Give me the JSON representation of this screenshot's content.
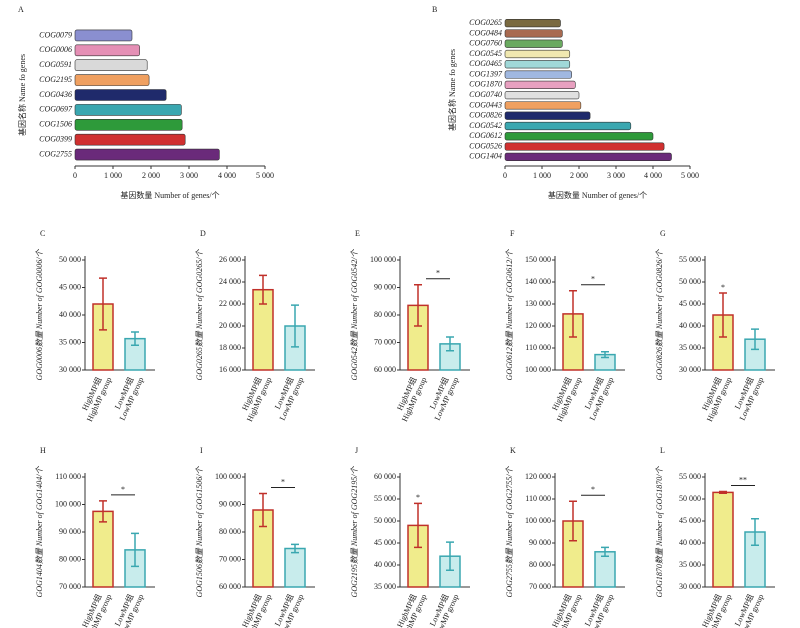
{
  "chart_data": [
    {
      "type": "bar",
      "orientation": "horizontal",
      "label": "A",
      "y_label": "基因名称  Name fo genes",
      "x_label": "基因数量  Number of genes/个",
      "categories": [
        "COG0079",
        "COG0006",
        "COG0591",
        "COG2195",
        "COG0436",
        "COG0697",
        "COG1506",
        "COG0399",
        "COG2755"
      ],
      "values": [
        1500,
        1700,
        1900,
        1950,
        2400,
        2800,
        2820,
        2900,
        3800
      ],
      "colors": [
        "#8a8fd0",
        "#e58fb5",
        "#d9d9d9",
        "#f0a060",
        "#1f2a6b",
        "#3aa7b0",
        "#2e9a3a",
        "#d03030",
        "#6a2a7a"
      ],
      "xlim": [
        0,
        5000
      ],
      "xticks": [
        0,
        {
          "value": 1000,
          "label": "1 000"
        },
        {
          "value": 2000,
          "label": "2 000"
        },
        {
          "value": 3000,
          "label": "3 000"
        },
        {
          "value": 4000,
          "label": "4 000"
        },
        {
          "value": 5000,
          "label": "5 000"
        }
      ]
    },
    {
      "type": "bar",
      "orientation": "horizontal",
      "label": "B",
      "y_label": "基因名称  Name fo genes",
      "x_label": "基因数量  Number of genes/个",
      "categories": [
        "COG0265",
        "COG0484",
        "COG0760",
        "COG0545",
        "COG0465",
        "COG1397",
        "COG1870",
        "COG0740",
        "COG0443",
        "COG0826",
        "COG0542",
        "COG0612",
        "COG0526",
        "COG1404"
      ],
      "values": [
        1500,
        1550,
        1550,
        1750,
        1750,
        1800,
        1900,
        2000,
        2050,
        2300,
        3400,
        4000,
        4300,
        4500
      ],
      "colors": [
        "#7a6a40",
        "#a86a50",
        "#6aaa60",
        "#f0e8b0",
        "#a0d8d8",
        "#a0b8e0",
        "#e8a0c0",
        "#e0e0e0",
        "#f0a060",
        "#1f2a6b",
        "#3aa7b0",
        "#2e9a3a",
        "#d03030",
        "#6a2a7a"
      ],
      "xlim": [
        0,
        5000
      ],
      "xticks": [
        0,
        {
          "value": 1000,
          "label": "1 000"
        },
        {
          "value": 2000,
          "label": "2 000"
        },
        {
          "value": 3000,
          "label": "3 000"
        },
        {
          "value": 4000,
          "label": "4 000"
        },
        {
          "value": 5000,
          "label": "5 000"
        }
      ]
    },
    {
      "type": "errorbar",
      "label": "C",
      "y_label": "GOG0006数量  Number of GOG0006/个",
      "categories": [
        [
          "HighMP组",
          "HighMP  group"
        ],
        [
          "LowMP组",
          "LowMP group"
        ]
      ],
      "values": [
        42000,
        35700
      ],
      "errors": [
        4700,
        1200
      ],
      "ylim": [
        30000,
        50000
      ],
      "yticks": [
        {
          "value": 30000,
          "label": "30 000"
        },
        {
          "value": 35000,
          "label": "35 000"
        },
        {
          "value": 40000,
          "label": "40 000"
        },
        {
          "value": 45000,
          "label": "45 000"
        },
        {
          "value": 50000,
          "label": "50 000"
        }
      ]
    },
    {
      "type": "errorbar",
      "label": "D",
      "y_label": "GOG0265数量  Number of GOG0265/个",
      "categories": [
        [
          "HighMP组",
          "HighMP  group"
        ],
        [
          "LowMP组",
          "LowMP group"
        ]
      ],
      "values": [
        23300,
        20000
      ],
      "errors": [
        1300,
        1900
      ],
      "ylim": [
        16000,
        26000
      ],
      "yticks": [
        {
          "value": 16000,
          "label": "16 000"
        },
        {
          "value": 18000,
          "label": "18 000"
        },
        {
          "value": 20000,
          "label": "20 000"
        },
        {
          "value": 22000,
          "label": "22 000"
        },
        {
          "value": 24000,
          "label": "24 000"
        },
        {
          "value": 26000,
          "label": "26 000"
        }
      ]
    },
    {
      "type": "errorbar",
      "label": "E",
      "y_label": "GOG0542数量  Number of GOG0542/个",
      "categories": [
        [
          "HighMP组",
          "HighMP  group"
        ],
        [
          "LowMP组",
          "LowMP group"
        ]
      ],
      "values": [
        83500,
        69500
      ],
      "errors": [
        7500,
        2500
      ],
      "ylim": [
        60000,
        100000
      ],
      "significance": "*",
      "bracket": true,
      "yticks": [
        {
          "value": 60000,
          "label": "60 000"
        },
        {
          "value": 70000,
          "label": "70 000"
        },
        {
          "value": 80000,
          "label": "80 000"
        },
        {
          "value": 90000,
          "label": "90 000"
        },
        {
          "value": 100000,
          "label": "100 000"
        }
      ]
    },
    {
      "type": "errorbar",
      "label": "F",
      "y_label": "GOG0612数量  Number of GOG0612/个",
      "categories": [
        [
          "HighMP组",
          "HighMP  group"
        ],
        [
          "LowMP组",
          "LowMP group"
        ]
      ],
      "values": [
        125500,
        107000
      ],
      "errors": [
        10500,
        1300
      ],
      "ylim": [
        100000,
        150000
      ],
      "significance": "*",
      "bracket": true,
      "yticks": [
        {
          "value": 100000,
          "label": "100 000"
        },
        {
          "value": 110000,
          "label": "110 000"
        },
        {
          "value": 120000,
          "label": "120 000"
        },
        {
          "value": 130000,
          "label": "130 000"
        },
        {
          "value": 140000,
          "label": "140 000"
        },
        {
          "value": 150000,
          "label": "150 000"
        }
      ]
    },
    {
      "type": "errorbar",
      "label": "G",
      "y_label": "GOG0826数量  Number of GOG0826/个",
      "categories": [
        [
          "HighMP组",
          "HighMP  group"
        ],
        [
          "LowMP组",
          "LowMP group"
        ]
      ],
      "values": [
        42500,
        37000
      ],
      "errors": [
        5000,
        2300
      ],
      "ylim": [
        30000,
        55000
      ],
      "significance": "*",
      "bracket": false,
      "yticks": [
        {
          "value": 30000,
          "label": "30 000"
        },
        {
          "value": 35000,
          "label": "35 000"
        },
        {
          "value": 40000,
          "label": "40 000"
        },
        {
          "value": 45000,
          "label": "45 000"
        },
        {
          "value": 50000,
          "label": "50 000"
        },
        {
          "value": 55000,
          "label": "55 000"
        }
      ]
    },
    {
      "type": "errorbar",
      "label": "H",
      "y_label": "GOG1404数量  Number of GOG1404/个",
      "categories": [
        [
          "HighMP组",
          "HighMP  group"
        ],
        [
          "LowMP组",
          "LowMP group"
        ]
      ],
      "values": [
        97500,
        83500
      ],
      "errors": [
        3800,
        6000
      ],
      "ylim": [
        70000,
        110000
      ],
      "significance": "*",
      "bracket": true,
      "yticks": [
        {
          "value": 70000,
          "label": "70 000"
        },
        {
          "value": 80000,
          "label": "80 000"
        },
        {
          "value": 90000,
          "label": "90 000"
        },
        {
          "value": 100000,
          "label": "100 000"
        },
        {
          "value": 110000,
          "label": "110 000"
        }
      ]
    },
    {
      "type": "errorbar",
      "label": "I",
      "y_label": "GOG1506数量  Number of GOG1506/个",
      "categories": [
        [
          "HighMP组",
          "HighMP  group"
        ],
        [
          "LowMP组",
          "LowMP group"
        ]
      ],
      "values": [
        88000,
        74000
      ],
      "errors": [
        6000,
        1500
      ],
      "ylim": [
        60000,
        100000
      ],
      "significance": "*",
      "bracket": true,
      "yticks": [
        {
          "value": 60000,
          "label": "60 000"
        },
        {
          "value": 70000,
          "label": "70 000"
        },
        {
          "value": 80000,
          "label": "80 000"
        },
        {
          "value": 90000,
          "label": "90 000"
        },
        {
          "value": 100000,
          "label": "100 000"
        }
      ]
    },
    {
      "type": "errorbar",
      "label": "J",
      "y_label": "GOG2195数量  Number of GOG2195/个",
      "categories": [
        [
          "HighMP组",
          "HighMP  group"
        ],
        [
          "LowMP组",
          "LowMP group"
        ]
      ],
      "values": [
        49000,
        42000
      ],
      "errors": [
        5000,
        3200
      ],
      "ylim": [
        35000,
        60000
      ],
      "significance": "*",
      "bracket": false,
      "yticks": [
        {
          "value": 35000,
          "label": "35 000"
        },
        {
          "value": 40000,
          "label": "40 000"
        },
        {
          "value": 45000,
          "label": "45 000"
        },
        {
          "value": 50000,
          "label": "50 000"
        },
        {
          "value": 55000,
          "label": "55 000"
        },
        {
          "value": 60000,
          "label": "60 000"
        }
      ]
    },
    {
      "type": "errorbar",
      "label": "K",
      "y_label": "GOG2755数量  Number of GOG2755/个",
      "categories": [
        [
          "HighMP组",
          "HighMP  group"
        ],
        [
          "LowMP组",
          "LowMP group"
        ]
      ],
      "values": [
        100000,
        86000
      ],
      "errors": [
        9000,
        2000
      ],
      "ylim": [
        70000,
        120000
      ],
      "significance": "*",
      "bracket": true,
      "yticks": [
        {
          "value": 70000,
          "label": "70 000"
        },
        {
          "value": 80000,
          "label": "80 000"
        },
        {
          "value": 90000,
          "label": "90 000"
        },
        {
          "value": 100000,
          "label": "100 000"
        },
        {
          "value": 110000,
          "label": "110 000"
        },
        {
          "value": 120000,
          "label": "120 000"
        }
      ]
    },
    {
      "type": "errorbar",
      "label": "L",
      "y_label": "GOG1870数量  Number of GOG1870/个",
      "categories": [
        [
          "HighMP组",
          "HighMP  group"
        ],
        [
          "LowMP组",
          "LowMP group"
        ]
      ],
      "values": [
        51500,
        42500
      ],
      "errors": [
        200,
        3000
      ],
      "ylim": [
        30000,
        55000
      ],
      "significance": "**",
      "bracket": true,
      "yticks": [
        {
          "value": 30000,
          "label": "30 000"
        },
        {
          "value": 35000,
          "label": "35 000"
        },
        {
          "value": 40000,
          "label": "40 000"
        },
        {
          "value": 45000,
          "label": "45 000"
        },
        {
          "value": 50000,
          "label": "50 000"
        },
        {
          "value": 55000,
          "label": "55 000"
        }
      ]
    }
  ]
}
